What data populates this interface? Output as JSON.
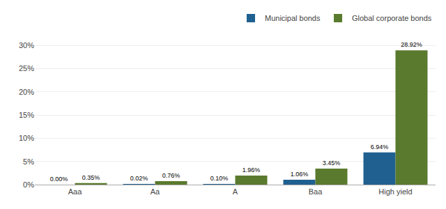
{
  "chart_data": {
    "type": "bar",
    "categories": [
      "Aaa",
      "Aa",
      "A",
      "Baa",
      "High yield"
    ],
    "series": [
      {
        "name": "Municipal bonds",
        "color": "#1f6090",
        "values": [
          0.0,
          0.02,
          0.1,
          1.06,
          6.94
        ],
        "value_labels": [
          "0.00%",
          "0.02%",
          "0.10%",
          "1.06%",
          "6.94%"
        ]
      },
      {
        "name": "Global corporate bonds",
        "color": "#5a7a2e",
        "values": [
          0.35,
          0.76,
          1.96,
          3.45,
          28.92
        ],
        "value_labels": [
          "0.35%",
          "0.76%",
          "1.96%",
          "3.45%",
          "28.92%"
        ]
      }
    ],
    "ylim": [
      0,
      33
    ],
    "yticks": [
      {
        "value": 0,
        "label": "0%"
      },
      {
        "value": 5,
        "label": "5%"
      },
      {
        "value": 10,
        "label": "10%"
      },
      {
        "value": 15,
        "label": "15%"
      },
      {
        "value": 20,
        "label": "20%"
      },
      {
        "value": 25,
        "label": "25%"
      },
      {
        "value": 30,
        "label": "30%"
      }
    ],
    "grid": true,
    "legend": "upper right",
    "data_labels": true
  }
}
